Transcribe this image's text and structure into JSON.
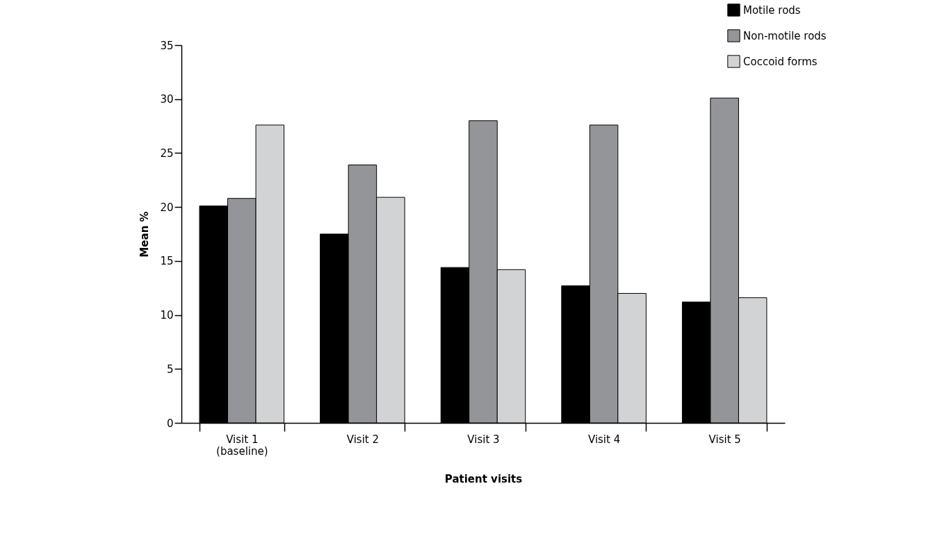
{
  "chart_data": {
    "type": "bar",
    "xlabel": "Patient visits",
    "ylabel": "Mean %",
    "categories": [
      "Visit 1\n(baseline)",
      "Visit 2",
      "Visit 3",
      "Visit 4",
      "Visit 5"
    ],
    "series": [
      {
        "name": "Motile rods",
        "color": "#000000",
        "values": [
          20.1,
          17.5,
          14.4,
          12.7,
          11.2
        ]
      },
      {
        "name": "Non-motile rods",
        "color": "#939598",
        "values": [
          20.8,
          23.9,
          28.0,
          27.6,
          30.1
        ]
      },
      {
        "name": "Coccoid forms",
        "color": "#d1d3d4",
        "values": [
          27.6,
          20.9,
          14.2,
          12.0,
          11.6
        ]
      }
    ],
    "ylim": [
      0,
      35
    ],
    "yticks": [
      0,
      5,
      10,
      15,
      20,
      25,
      30,
      35
    ],
    "grid": false,
    "legend": "top right"
  }
}
